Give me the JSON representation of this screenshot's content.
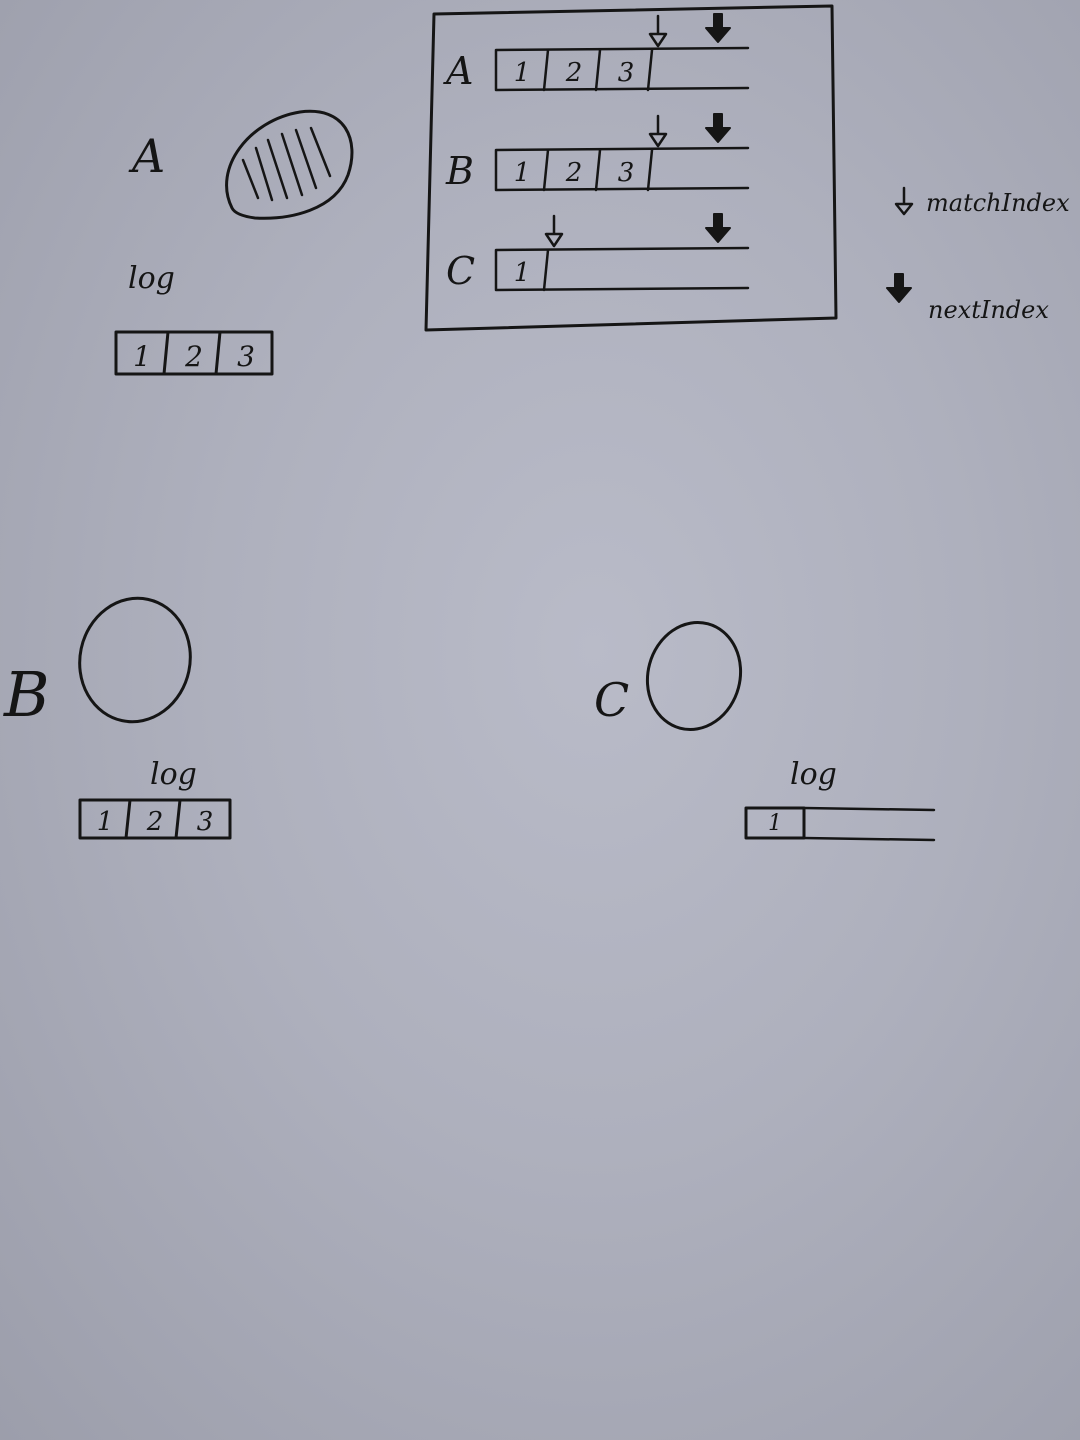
{
  "nodes": [
    {
      "id": "A",
      "label": "A",
      "log_label": "log",
      "entries": [
        "1",
        "2",
        "3"
      ],
      "leader": true
    },
    {
      "id": "B",
      "label": "B",
      "log_label": "log",
      "entries": [
        "1",
        "2",
        "3"
      ],
      "leader": false
    },
    {
      "id": "C",
      "label": "C",
      "log_label": "log",
      "entries": [
        "1"
      ],
      "leader": false
    }
  ],
  "leader_state": {
    "rows": [
      {
        "label": "A",
        "entries": [
          "1",
          "2",
          "3"
        ],
        "match_index": 3,
        "next_index": 4
      },
      {
        "label": "B",
        "entries": [
          "1",
          "2",
          "3"
        ],
        "match_index": 3,
        "next_index": 4
      },
      {
        "label": "C",
        "entries": [
          "1"
        ],
        "match_index": 1,
        "next_index": 4
      }
    ]
  },
  "legend": {
    "match_index_label": "matchIndex",
    "next_index_label": "nextIndex"
  },
  "colors": {
    "ink": "#151515",
    "paper": "#b3b5c2"
  }
}
